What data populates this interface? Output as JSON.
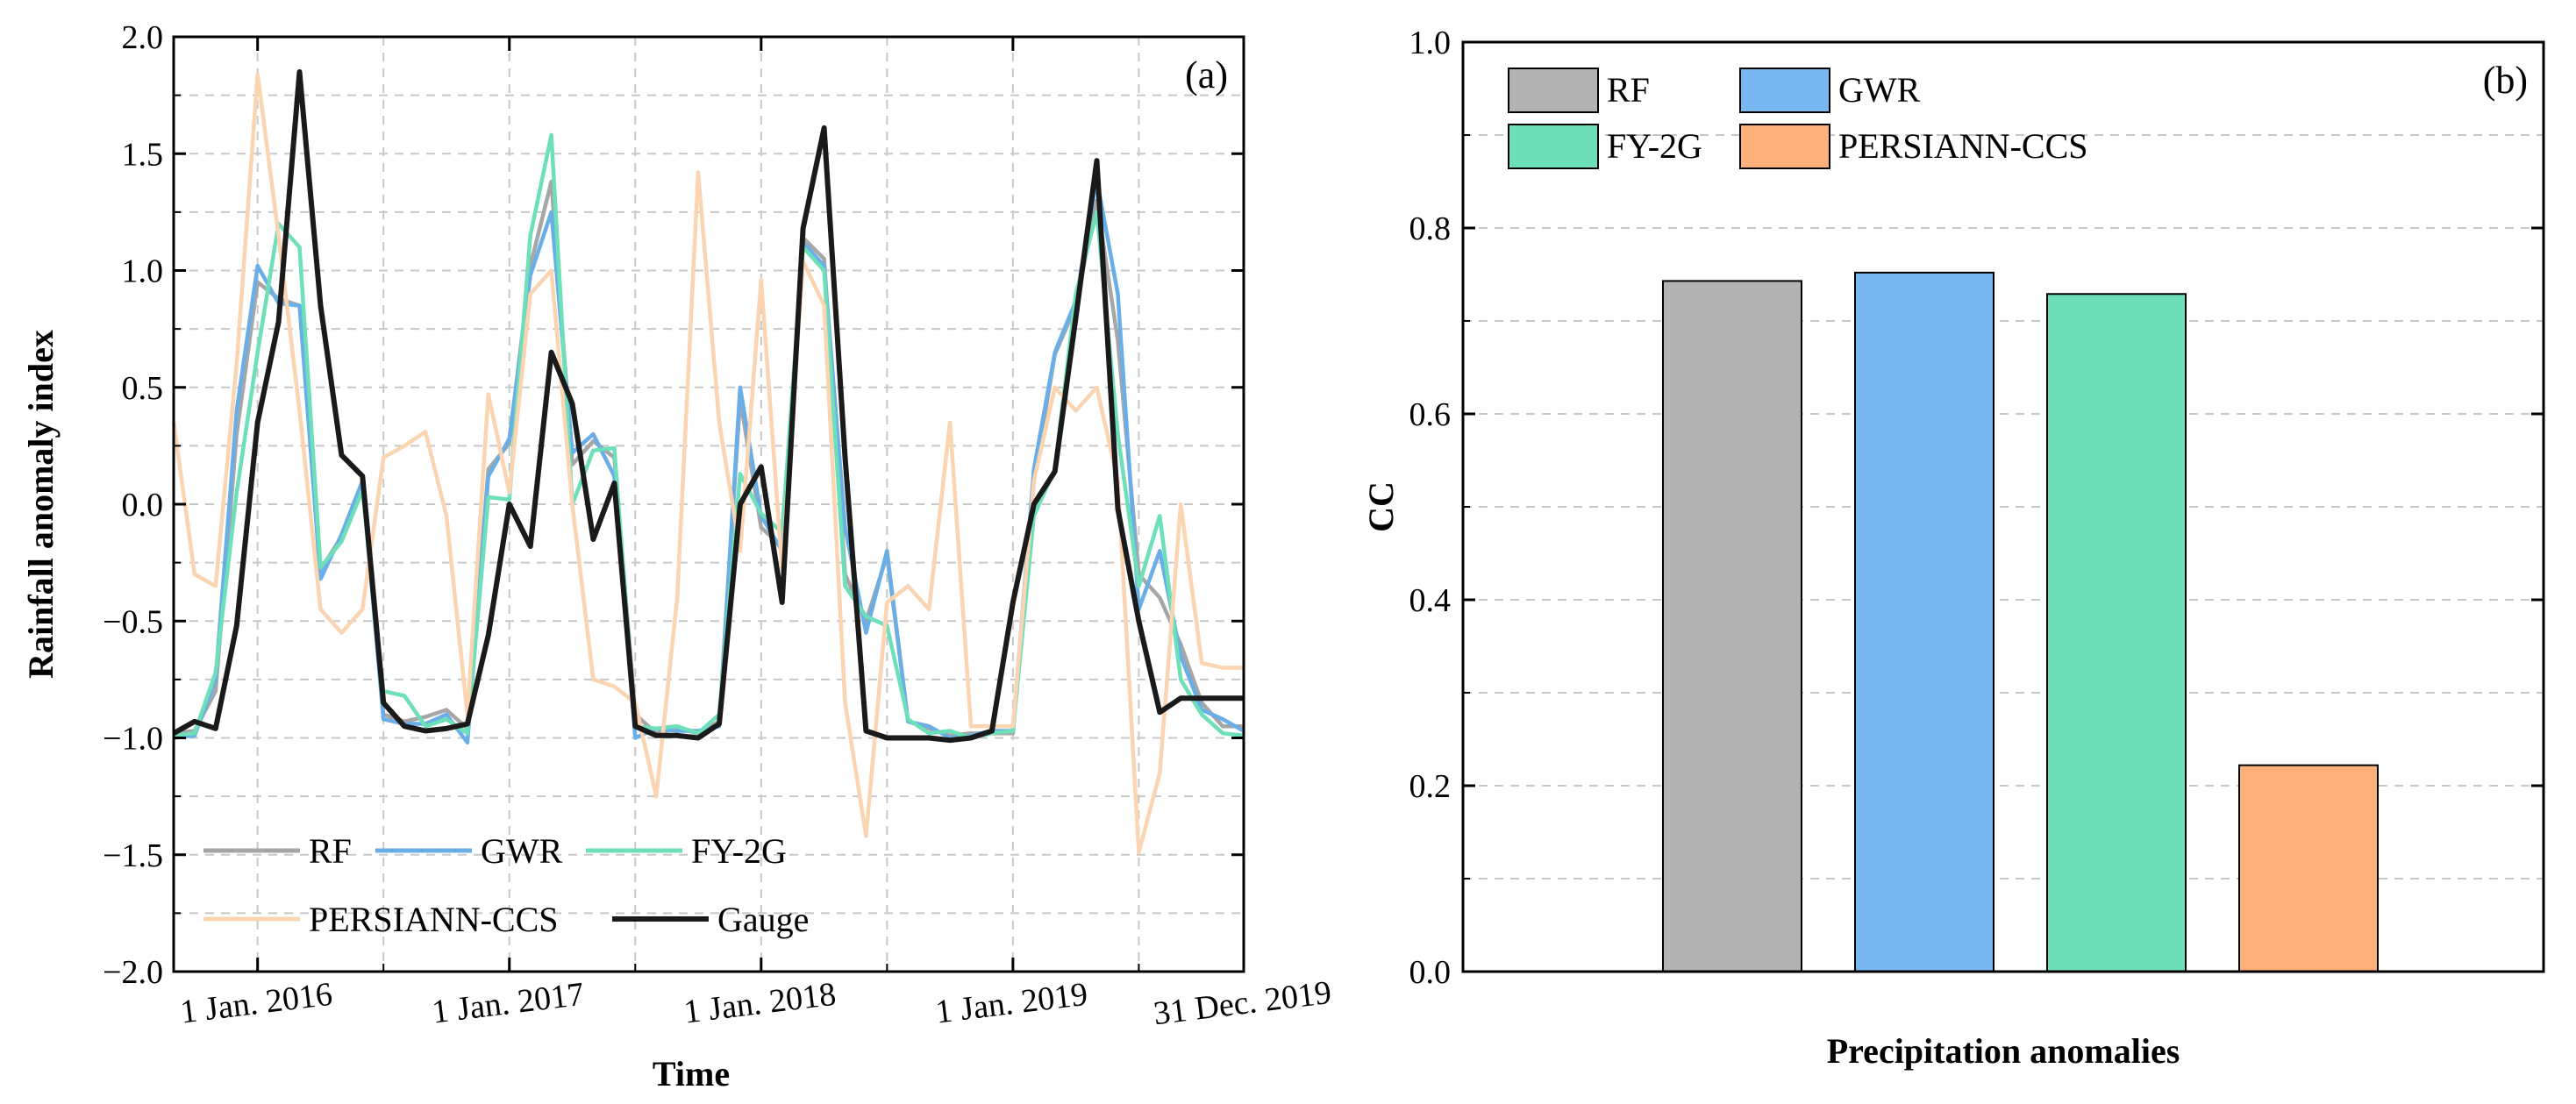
{
  "chart_data": [
    {
      "type": "line",
      "panel_label": "(a)",
      "xlabel": "Time",
      "ylabel": "Rainfall anomaly index",
      "ylim": [
        -2.0,
        2.0
      ],
      "yticks": [
        "2.0",
        "1.5",
        "1.0",
        "0.5",
        "0.0",
        "−0.5",
        "−1.0",
        "−1.5",
        "−2.0"
      ],
      "xticks": [
        "1 Jan. 2016",
        "1 Jan. 2017",
        "1 Jan. 2018",
        "1 Jan. 2019",
        "31 Dec. 2019"
      ],
      "grid": true,
      "legend_position": "bottom-left",
      "x": [
        "2015-09",
        "2015-10",
        "2015-11",
        "2015-12",
        "2016-01",
        "2016-02",
        "2016-03",
        "2016-04",
        "2016-05",
        "2016-06",
        "2016-07",
        "2016-08",
        "2016-09",
        "2016-10",
        "2016-11",
        "2016-12",
        "2017-01",
        "2017-02",
        "2017-03",
        "2017-04",
        "2017-05",
        "2017-06",
        "2017-07",
        "2017-08",
        "2017-09",
        "2017-10",
        "2017-11",
        "2017-12",
        "2018-01",
        "2018-02",
        "2018-03",
        "2018-04",
        "2018-05",
        "2018-06",
        "2018-07",
        "2018-08",
        "2018-09",
        "2018-10",
        "2018-11",
        "2018-12",
        "2019-01",
        "2019-02",
        "2019-03",
        "2019-04",
        "2019-05",
        "2019-06",
        "2019-07",
        "2019-08",
        "2019-09",
        "2019-10",
        "2019-11",
        "2019-12"
      ],
      "series": [
        {
          "name": "RF",
          "color": "#a6a6a6",
          "values": [
            -0.98,
            -0.97,
            -0.8,
            0.3,
            0.95,
            0.88,
            0.85,
            -0.28,
            -0.14,
            0.08,
            -0.9,
            -0.93,
            -0.91,
            -0.88,
            -0.96,
            0.15,
            0.26,
            1.02,
            1.38,
            0.17,
            0.27,
            0.2,
            -0.9,
            -0.98,
            -0.96,
            -0.98,
            -0.93,
            0.45,
            -0.1,
            -0.18,
            1.14,
            1.05,
            -0.3,
            -0.5,
            -0.22,
            -0.93,
            -0.96,
            -0.99,
            -0.98,
            -0.98,
            -0.98,
            0.1,
            0.64,
            0.85,
            1.3,
            0.7,
            -0.3,
            -0.4,
            -0.6,
            -0.85,
            -0.95,
            -0.95
          ]
        },
        {
          "name": "GWR",
          "color": "#6aaee8",
          "values": [
            -1.0,
            -0.99,
            -0.75,
            0.4,
            1.02,
            0.86,
            0.85,
            -0.32,
            -0.13,
            0.1,
            -0.92,
            -0.94,
            -0.94,
            -0.9,
            -1.02,
            0.12,
            0.28,
            0.98,
            1.25,
            0.22,
            0.3,
            0.12,
            -1.0,
            -0.96,
            -0.97,
            -0.97,
            -0.95,
            0.5,
            -0.05,
            -0.2,
            1.12,
            1.02,
            -0.1,
            -0.55,
            -0.2,
            -0.93,
            -0.95,
            -1.0,
            -0.99,
            -0.97,
            -0.97,
            0.15,
            0.65,
            0.87,
            1.39,
            0.9,
            -0.45,
            -0.2,
            -0.65,
            -0.88,
            -0.92,
            -0.97
          ]
        },
        {
          "name": "FY-2G",
          "color": "#6ddfb9",
          "values": [
            -0.99,
            -0.98,
            -0.72,
            0.05,
            0.65,
            1.2,
            1.1,
            -0.27,
            -0.16,
            0.06,
            -0.8,
            -0.82,
            -0.95,
            -0.92,
            -0.98,
            0.03,
            0.02,
            1.15,
            1.58,
            0.0,
            0.23,
            0.24,
            -0.95,
            -0.96,
            -0.95,
            -0.98,
            -0.9,
            0.13,
            -0.04,
            -0.12,
            1.1,
            1.0,
            -0.35,
            -0.48,
            -0.52,
            -0.92,
            -0.98,
            -0.97,
            -1.0,
            -0.98,
            -0.97,
            -0.05,
            0.15,
            0.9,
            1.25,
            0.3,
            -0.35,
            -0.05,
            -0.75,
            -0.9,
            -0.98,
            -0.99
          ]
        },
        {
          "name": "PERSIANN-CCS",
          "color": "#fbd4b2",
          "values": [
            0.35,
            -0.3,
            -0.35,
            0.6,
            1.84,
            1.15,
            0.4,
            -0.45,
            -0.55,
            -0.45,
            0.2,
            0.25,
            0.31,
            -0.05,
            -0.9,
            0.47,
            0.05,
            0.9,
            1.0,
            0.0,
            -0.75,
            -0.78,
            -0.85,
            -1.25,
            -0.4,
            1.42,
            0.35,
            -0.2,
            0.96,
            -0.28,
            1.04,
            0.85,
            -0.85,
            -1.42,
            -0.42,
            -0.35,
            -0.45,
            0.35,
            -0.95,
            -0.95,
            -0.95,
            0.1,
            0.5,
            0.4,
            0.5,
            0.1,
            -1.49,
            -1.15,
            0.0,
            -0.68,
            -0.7,
            -0.7
          ]
        },
        {
          "name": "Gauge",
          "color": "#1a1a1a",
          "values": [
            -0.98,
            -0.93,
            -0.96,
            -0.52,
            0.35,
            0.78,
            1.85,
            0.85,
            0.21,
            0.12,
            -0.85,
            -0.95,
            -0.97,
            -0.96,
            -0.94,
            -0.56,
            0.0,
            -0.18,
            0.65,
            0.43,
            -0.15,
            0.09,
            -0.95,
            -0.99,
            -0.99,
            -1.0,
            -0.94,
            0.0,
            0.16,
            -0.42,
            1.18,
            1.61,
            0.2,
            -0.97,
            -1.0,
            -1.0,
            -1.0,
            -1.01,
            -1.0,
            -0.97,
            -0.42,
            0.0,
            0.14,
            0.8,
            1.47,
            -0.02,
            -0.5,
            -0.89,
            -0.83,
            -0.83,
            -0.83,
            -0.83
          ]
        }
      ]
    },
    {
      "type": "bar",
      "panel_label": "(b)",
      "xlabel": "Precipitation anomalies",
      "ylabel": "CC",
      "ylim": [
        0.0,
        1.0
      ],
      "yticks": [
        "1.0",
        "0.8",
        "0.6",
        "0.4",
        "0.2",
        "0.0"
      ],
      "grid": true,
      "legend_position": "top-left",
      "categories": [
        "RF",
        "GWR",
        "FY-2G",
        "PERSIANN-CCS"
      ],
      "values": [
        0.743,
        0.752,
        0.729,
        0.222
      ],
      "colors": [
        "#b3b3b3",
        "#79b8f2",
        "#6ddfb9",
        "#fdb07a"
      ]
    }
  ]
}
